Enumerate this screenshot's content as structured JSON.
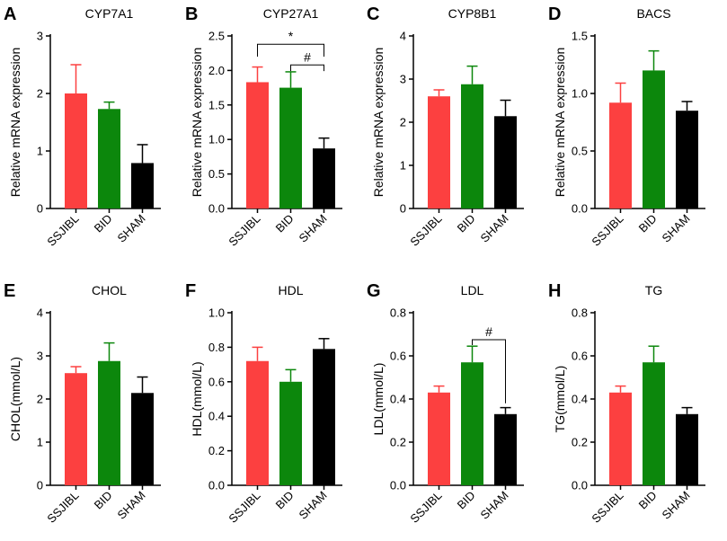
{
  "colors": {
    "SSJIBL": "#fc4040",
    "BID": "#0c870c",
    "SHAM": "#000000"
  },
  "chart_data": [
    {
      "type": "bar",
      "letter": "A",
      "title": "CYP7A1",
      "ylabel": "Relative mRNA expression",
      "categories": [
        "SSJIBL",
        "BID",
        "SHAM"
      ],
      "values": [
        2.0,
        1.73,
        0.79
      ],
      "errors": [
        0.5,
        0.12,
        0.32
      ],
      "ylim": [
        0,
        3
      ],
      "yticks": [
        "0",
        "1",
        "2",
        "3"
      ],
      "ytick_values": [
        0,
        1,
        2,
        3
      ],
      "brackets": []
    },
    {
      "type": "bar",
      "letter": "B",
      "title": "CYP27A1",
      "ylabel": "Relative mRNA expression",
      "categories": [
        "SSJIBL",
        "BID",
        "SHAM"
      ],
      "values": [
        1.83,
        1.75,
        0.87
      ],
      "errors": [
        0.22,
        0.23,
        0.15
      ],
      "ylim": [
        0,
        2.5
      ],
      "yticks": [
        "0.0",
        "0.5",
        "1.0",
        "1.5",
        "2.0",
        "2.5"
      ],
      "ytick_values": [
        0,
        0.5,
        1.0,
        1.5,
        2.0,
        2.5
      ],
      "brackets": [
        {
          "from": 0,
          "to": 2,
          "level": 2.38,
          "drop_from": 2.2,
          "drop_to": 2.2,
          "label": "*"
        },
        {
          "from": 1,
          "to": 2,
          "level": 2.08,
          "drop_from": 1.99,
          "drop_to": 1.99,
          "label": "#"
        }
      ]
    },
    {
      "type": "bar",
      "letter": "C",
      "title": "CYP8B1",
      "ylabel": "Relative mRNA expression",
      "categories": [
        "SSJIBL",
        "BID",
        "SHAM"
      ],
      "values": [
        2.6,
        2.88,
        2.14
      ],
      "errors": [
        0.15,
        0.42,
        0.37
      ],
      "ylim": [
        0,
        4
      ],
      "yticks": [
        "0",
        "1",
        "2",
        "3",
        "4"
      ],
      "ytick_values": [
        0,
        1,
        2,
        3,
        4
      ],
      "brackets": []
    },
    {
      "type": "bar",
      "letter": "D",
      "title": "BACS",
      "ylabel": "Relative mRNA expression",
      "categories": [
        "SSJIBL",
        "BID",
        "SHAM"
      ],
      "values": [
        0.92,
        1.2,
        0.85
      ],
      "errors": [
        0.17,
        0.17,
        0.08
      ],
      "ylim": [
        0,
        1.5
      ],
      "yticks": [
        "0.0",
        "0.5",
        "1.0",
        "1.5"
      ],
      "ytick_values": [
        0,
        0.5,
        1.0,
        1.5
      ],
      "brackets": []
    },
    {
      "type": "bar",
      "letter": "E",
      "title": "CHOL",
      "ylabel": "CHOL(mmol/L)",
      "categories": [
        "SSJIBL",
        "BID",
        "SHAM"
      ],
      "values": [
        2.6,
        2.88,
        2.14
      ],
      "errors": [
        0.15,
        0.42,
        0.37
      ],
      "ylim": [
        0,
        4
      ],
      "yticks": [
        "0",
        "1",
        "2",
        "3",
        "4"
      ],
      "ytick_values": [
        0,
        1,
        2,
        3,
        4
      ],
      "brackets": []
    },
    {
      "type": "bar",
      "letter": "F",
      "title": "HDL",
      "ylabel": "HDL(mmol/L)",
      "categories": [
        "SSJIBL",
        "BID",
        "SHAM"
      ],
      "values": [
        0.72,
        0.6,
        0.79
      ],
      "errors": [
        0.08,
        0.07,
        0.06
      ],
      "ylim": [
        0,
        1.0
      ],
      "yticks": [
        "0.0",
        "0.2",
        "0.4",
        "0.6",
        "0.8",
        "1.0"
      ],
      "ytick_values": [
        0,
        0.2,
        0.4,
        0.6,
        0.8,
        1.0
      ],
      "brackets": []
    },
    {
      "type": "bar",
      "letter": "G",
      "title": "LDL",
      "ylabel": "LDL(mmol/L)",
      "categories": [
        "SSJIBL",
        "BID",
        "SHAM"
      ],
      "values": [
        0.43,
        0.57,
        0.33
      ],
      "errors": [
        0.03,
        0.075,
        0.03
      ],
      "ylim": [
        0,
        0.8
      ],
      "yticks": [
        "0.0",
        "0.2",
        "0.4",
        "0.6",
        "0.8"
      ],
      "ytick_values": [
        0,
        0.2,
        0.4,
        0.6,
        0.8
      ],
      "brackets": [
        {
          "from": 1,
          "to": 2,
          "level": 0.675,
          "drop_from": 0.65,
          "drop_to": 0.38,
          "label": "#"
        }
      ]
    },
    {
      "type": "bar",
      "letter": "H",
      "title": "TG",
      "ylabel": "TG(mmol/L)",
      "categories": [
        "SSJIBL",
        "BID",
        "SHAM"
      ],
      "values": [
        0.43,
        0.57,
        0.33
      ],
      "errors": [
        0.03,
        0.075,
        0.03
      ],
      "ylim": [
        0,
        0.8
      ],
      "yticks": [
        "0.0",
        "0.2",
        "0.4",
        "0.6",
        "0.8"
      ],
      "ytick_values": [
        0,
        0.2,
        0.4,
        0.6,
        0.8
      ],
      "brackets": []
    }
  ]
}
